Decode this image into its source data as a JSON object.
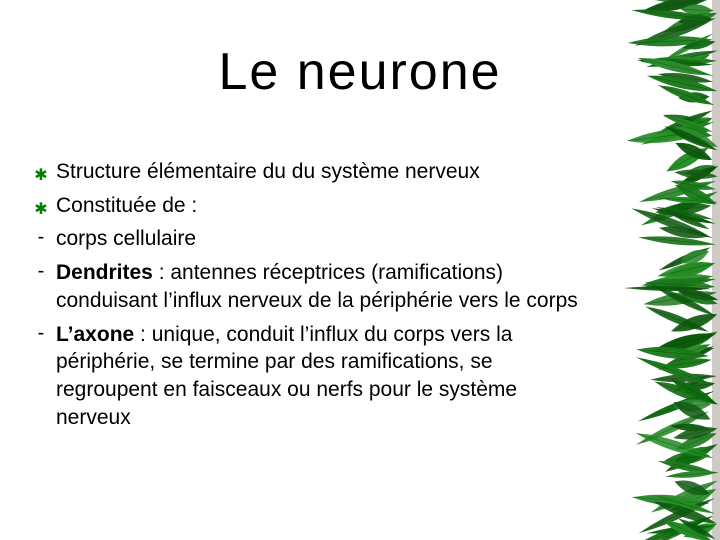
{
  "slide": {
    "title": "Le neurone",
    "title_color": "#000000",
    "title_fontsize": 52,
    "body_fontsize": 21,
    "body_lineheight": 1.32,
    "bullets": [
      {
        "marker": "snowflake",
        "html": "Structure élémentaire du du système nerveux"
      },
      {
        "marker": "snowflake",
        "html": "Constituée de :"
      },
      {
        "marker": "dash",
        "html": "corps cellulaire"
      },
      {
        "marker": "dash",
        "html": "<b>Dendrites</b> : antennes réceptrices (ramifications) conduisant l’influx nerveux de la périphérie vers le corps"
      },
      {
        "marker": "dash",
        "html": "<b>L’axone</b> : unique, conduit l’influx du corps vers la périphérie, se termine par des ramifications, se regroupent en faisceaux ou nerfs pour le système nerveux"
      }
    ]
  },
  "decor": {
    "leaf_colors": [
      "#0a5a0a",
      "#1a7a1a",
      "#2e8b2e",
      "#0f6b0f",
      "#228b22",
      "#145c14"
    ],
    "stem_color": "#3a2a16"
  }
}
